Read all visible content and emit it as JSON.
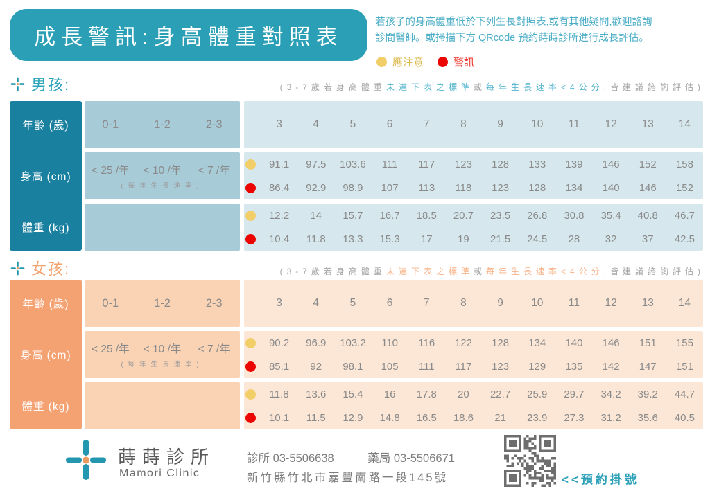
{
  "header": {
    "title": "成長警訊:身高體重對照表",
    "info_line1": "若孩子的身高體重低於下列生長對照表,或有其他疑問,歡迎諮詢",
    "info_line2": "診間醫師。或掃描下方 QRcode 預約蒔蒔診所進行成長評估。",
    "legend": {
      "caution_label": "應注意",
      "warning_label": "警訊"
    },
    "colors": {
      "banner_teal": "#2A9FB5",
      "dark_teal": "#1A809F",
      "mid_blue": "#A8CBD8",
      "light_blue": "#D6E8EE",
      "orange": "#F5A273",
      "peach": "#FAD3B5",
      "light_peach": "#FCE7D6",
      "caution_yellow": "#F2CE68",
      "warning_red": "#EB0400"
    }
  },
  "note_template": {
    "p1": "(3-7歲若身高體重",
    "h1": "未達下表之標準",
    "p2": "或",
    "h2": "每年生長速率<4公分",
    "p3": ",皆建議諮詢評估)"
  },
  "sections": [
    {
      "label": "男孩:",
      "note": {
        "p1": "(3-7歲若身高體重",
        "h1": "未達下表之標準",
        "p2": "或",
        "h2": "每年生長速率<4公分",
        "p3": ",皆建議諮詢評估)"
      },
      "row_labels": {
        "age": "年齡 (歲)",
        "height": "身高 (cm)",
        "weight": "體重 (kg)"
      },
      "age_groups": [
        "0-1",
        "1-2",
        "2-3"
      ],
      "growth_rates": [
        "< 25 /年",
        "< 10 /年",
        "< 7 /年"
      ],
      "growth_note": "(每年生長速率)",
      "ages": [
        "3",
        "4",
        "5",
        "6",
        "7",
        "8",
        "9",
        "10",
        "11",
        "12",
        "13",
        "14"
      ],
      "height_caution": [
        "91.1",
        "97.5",
        "103.6",
        "111",
        "117",
        "123",
        "128",
        "133",
        "139",
        "146",
        "152",
        "158"
      ],
      "height_warning": [
        "86.4",
        "92.9",
        "98.9",
        "107",
        "113",
        "118",
        "123",
        "128",
        "134",
        "140",
        "146",
        "152"
      ],
      "weight_caution": [
        "12.2",
        "14",
        "15.7",
        "16.7",
        "18.5",
        "20.7",
        "23.5",
        "26.8",
        "30.8",
        "35.4",
        "40.8",
        "46.7"
      ],
      "weight_warning": [
        "10.4",
        "11.8",
        "13.3",
        "15.3",
        "17",
        "19",
        "21.5",
        "24.5",
        "28",
        "32",
        "37",
        "42.5"
      ]
    },
    {
      "label": "女孩:",
      "note": {
        "p1": "(3-7歲若身高體重",
        "h1": "未達下表之標準",
        "p2": "或",
        "h2": "每年生長速率<4公分",
        "p3": ",皆建議諮詢評估)"
      },
      "row_labels": {
        "age": "年齡 (歲)",
        "height": "身高 (cm)",
        "weight": "體重 (kg)"
      },
      "age_groups": [
        "0-1",
        "1-2",
        "2-3"
      ],
      "growth_rates": [
        "< 25 /年",
        "< 10 /年",
        "< 7 /年"
      ],
      "growth_note": "(每年生長速率)",
      "ages": [
        "3",
        "4",
        "5",
        "6",
        "7",
        "8",
        "9",
        "10",
        "11",
        "12",
        "13",
        "14"
      ],
      "height_caution": [
        "90.2",
        "96.9",
        "103.2",
        "110",
        "116",
        "122",
        "128",
        "134",
        "140",
        "146",
        "151",
        "155"
      ],
      "height_warning": [
        "85.1",
        "92",
        "98.1",
        "105",
        "111",
        "117",
        "123",
        "129",
        "135",
        "142",
        "147",
        "151"
      ],
      "weight_caution": [
        "11.8",
        "13.6",
        "15.4",
        "16",
        "17.8",
        "20",
        "22.7",
        "25.9",
        "29.7",
        "34.2",
        "39.2",
        "44.7"
      ],
      "weight_warning": [
        "10.1",
        "11.5",
        "12.9",
        "14.8",
        "16.5",
        "18.6",
        "21",
        "23.9",
        "27.3",
        "31.2",
        "35.6",
        "40.5"
      ]
    }
  ],
  "footer": {
    "clinic_name": "蒔蒔診所",
    "clinic_name_en": "Mamori Clinic",
    "phone_clinic": "診所 03-5506638",
    "phone_pharmacy": "藥局 03-5506671",
    "address": "新竹縣竹北市嘉豐南路一段145號",
    "booking_label": "<<預約掛號"
  }
}
